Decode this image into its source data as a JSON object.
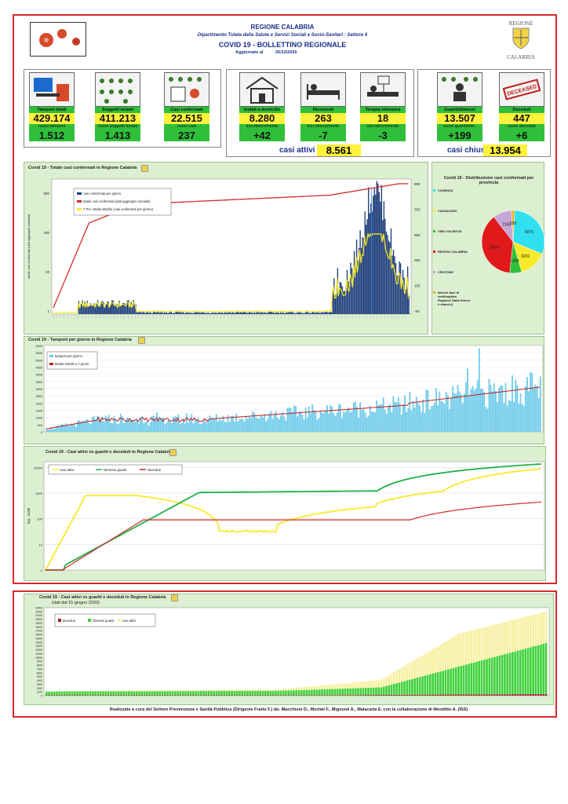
{
  "header": {
    "region": "REGIONE CALABRIA",
    "department": "Dipartimento Tutela della Salute e Servizi Sociali e Socio-Sanitari - Settore 4",
    "title": "COVID 19 - BOLLETTINO REGIONALE",
    "updated_label": "Aggiornato al",
    "updated_date": "26/12/2020",
    "logo_top": "REGIONE",
    "logo_bottom": "CALABRIA"
  },
  "tiles": [
    {
      "label": "Tamponi totali",
      "value": "429.174",
      "label2": "nuovi tamponi",
      "value2": "1.512"
    },
    {
      "label": "Soggetti testati",
      "value": "411.213",
      "label2": "nuovi soggetti testati",
      "value2": "1.413"
    },
    {
      "label": "Casi confermati",
      "value": "22.515",
      "label2": "nuovi casi",
      "value2": "237"
    },
    {
      "label": "Isolati a domicilio",
      "value": "8.280",
      "label2": "incr./decremento",
      "value2": "+42"
    },
    {
      "label": "Ricoverati",
      "value": "263",
      "label2": "incr./decremento",
      "value2": "-7"
    },
    {
      "label": "Terapia intensiva",
      "value": "18",
      "label2": "incr./decremento",
      "value2": "-3"
    },
    {
      "label": "Guariti/dimessi",
      "value": "13.507",
      "label2": "nuovi guariti/dim.",
      "value2": "+199"
    },
    {
      "label": "Deceduti",
      "value": "447",
      "label2": "nuovi deceduti",
      "value2": "+6"
    }
  ],
  "summary": {
    "attivi_label": "casi attivi",
    "attivi_value": "8.561",
    "chiusi_label": "casi chiusi",
    "chiusi_value": "13.954"
  },
  "footer": "Realizzato a cura del Settore Prevenzione e Sanità Pubblica (Dirigente Fratto F.) da: Macchioni D., Mortati F., Mignuoli A., Malacaria E. con la collaborazione di Menditto A. (ISS)",
  "chart_data": [
    {
      "type": "bar",
      "title": "Covid 19 - Totale casi confermati in Regione Calabria",
      "ylabel": "totale casi confermati (dati aggregati cumulati)",
      "legend": [
        "casi confermati per giorno",
        "totale casi confermati (dati aggregati cumulati)",
        "7 Per. Media Mobile (casi confermati per giorno)"
      ],
      "yticks_left": [
        "800",
        "400",
        "20",
        "1"
      ],
      "yticks_right": [
        "950",
        "750",
        "550",
        "350",
        "150",
        "-50"
      ],
      "colors": {
        "bars": "#1f3f7a",
        "cumulative": "#d62a2a",
        "moving_avg": "#f7ea2a"
      }
    },
    {
      "type": "pie",
      "title": "Covid 19 - Distribuzione casi confermati per provincia",
      "series": [
        {
          "name": "COSENZA",
          "value": 6879,
          "color": "#2fe0f0"
        },
        {
          "name": "CATANZARO",
          "value": 3201,
          "color": "#f7ea2a"
        },
        {
          "name": "VIBO VALENTIA",
          "value": 1390,
          "color": "#2fbf3a"
        },
        {
          "name": "REGGIO CALABRIA",
          "value": 8504,
          "color": "#e01a1a"
        },
        {
          "name": "CROTONE",
          "value": 2183,
          "color": "#c7a7d8"
        },
        {
          "name": "altro/in fase di verifica(altra Regione/ Stato Estero e sbarchi)",
          "value": 358,
          "color": "#f0b020"
        }
      ]
    },
    {
      "type": "bar",
      "title": "Covid 19 - Tamponi per giorno in Regione Calabria",
      "legend": [
        "tamponi per giorno",
        "Media mobile a 7 giorni"
      ],
      "yticks": [
        "6000",
        "5500",
        "5000",
        "4500",
        "4000",
        "3500",
        "3000",
        "2500",
        "2000",
        "1500",
        "1000",
        "500",
        "0"
      ],
      "colors": {
        "bars": "#6ecbea",
        "moving_avg": "#c01a1a"
      }
    },
    {
      "type": "line",
      "title": "Covid 19 - Casi attivi vs guariti e deceduti in Regione Calabria",
      "ylabel": "log - scale",
      "yticks": [
        "10000",
        "1000",
        "100",
        "10",
        "1"
      ],
      "series": [
        {
          "name": "casi attivi",
          "color": "#f7ea2a"
        },
        {
          "name": "Dimessi guariti",
          "color": "#1fb04a"
        },
        {
          "name": "deceduti",
          "color": "#d62a2a"
        }
      ]
    },
    {
      "type": "bar",
      "title": "Covid 19 - Casi attivi vs guariti e deceduti in Regione Calabria",
      "subtitle": "(dati dal 15 giugno 2020)",
      "yticks": [
        "23000",
        "22000",
        "21000",
        "20000",
        "19000",
        "18000",
        "17000",
        "16000",
        "15000",
        "14000",
        "13000",
        "12000",
        "11000",
        "10000",
        "9000",
        "8000",
        "7000",
        "6000",
        "5000",
        "4000",
        "3000",
        "2000",
        "1000",
        "0"
      ],
      "series": [
        {
          "name": "deceduti",
          "color": "#a01a1a"
        },
        {
          "name": "Dimessi guariti",
          "color": "#3fd03a"
        },
        {
          "name": "casi attivi",
          "color": "#f7f0a0"
        }
      ]
    }
  ]
}
